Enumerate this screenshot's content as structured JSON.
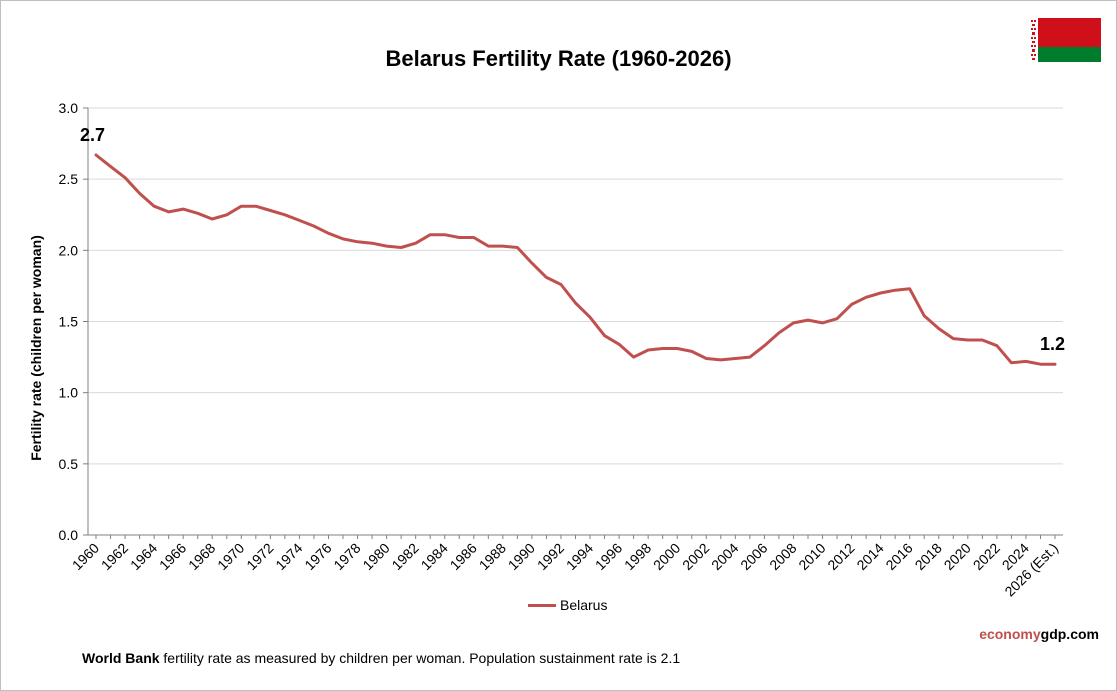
{
  "header": {
    "title": "Belarus Fertility Rate (1960-2026)"
  },
  "footer": {
    "brand_part1": "economy",
    "brand_part2": "gdp.com",
    "note_bold": "World Bank",
    "note_text": " fertility rate as measured by children per woman.  Population sustainment rate is 2.1"
  },
  "flag": {
    "icon": "belarus-flag-icon",
    "colors": {
      "red": "#cf101a",
      "green": "#007d2c",
      "white": "#ffffff"
    }
  },
  "chart_data": {
    "type": "line",
    "title": "Belarus Fertility Rate (1960-2026)",
    "xlabel": "",
    "ylabel": "Fertility rate (children per woman)",
    "ylim": [
      0,
      3.0
    ],
    "yticks": [
      0.0,
      0.5,
      1.0,
      1.5,
      2.0,
      2.5,
      3.0
    ],
    "ytick_labels": [
      "0.0",
      "0.5",
      "1.0",
      "1.5",
      "2.0",
      "2.5",
      "3.0"
    ],
    "grid": "horizontal",
    "legend_position": "bottom",
    "x": [
      "1960",
      "1961",
      "1962",
      "1963",
      "1964",
      "1965",
      "1966",
      "1967",
      "1968",
      "1969",
      "1970",
      "1971",
      "1972",
      "1973",
      "1974",
      "1975",
      "1976",
      "1977",
      "1978",
      "1979",
      "1980",
      "1981",
      "1982",
      "1983",
      "1984",
      "1985",
      "1986",
      "1987",
      "1988",
      "1989",
      "1990",
      "1991",
      "1992",
      "1993",
      "1994",
      "1995",
      "1996",
      "1997",
      "1998",
      "1999",
      "2000",
      "2001",
      "2002",
      "2003",
      "2004",
      "2005",
      "2006",
      "2007",
      "2008",
      "2009",
      "2010",
      "2011",
      "2012",
      "2013",
      "2014",
      "2015",
      "2016",
      "2017",
      "2018",
      "2019",
      "2020",
      "2021",
      "2022",
      "2023",
      "2024",
      "2025",
      "2026 (Est.)"
    ],
    "x_tick_labels_shown": [
      "1960",
      "1962",
      "1964",
      "1966",
      "1968",
      "1970",
      "1972",
      "1974",
      "1976",
      "1978",
      "1980",
      "1982",
      "1984",
      "1986",
      "1988",
      "1990",
      "1992",
      "1994",
      "1996",
      "1998",
      "2000",
      "2002",
      "2004",
      "2006",
      "2008",
      "2010",
      "2012",
      "2014",
      "2016",
      "2018",
      "2020",
      "2022",
      "2024",
      "2026 (Est.)"
    ],
    "series": [
      {
        "name": "Belarus",
        "color": "#c0504d",
        "values": [
          2.67,
          2.59,
          2.51,
          2.4,
          2.31,
          2.27,
          2.29,
          2.26,
          2.22,
          2.25,
          2.31,
          2.31,
          2.28,
          2.25,
          2.21,
          2.17,
          2.12,
          2.08,
          2.06,
          2.05,
          2.03,
          2.02,
          2.05,
          2.11,
          2.11,
          2.09,
          2.09,
          2.03,
          2.03,
          2.02,
          1.91,
          1.81,
          1.76,
          1.63,
          1.53,
          1.4,
          1.34,
          1.25,
          1.3,
          1.31,
          1.31,
          1.29,
          1.24,
          1.23,
          1.24,
          1.25,
          1.33,
          1.42,
          1.49,
          1.51,
          1.49,
          1.52,
          1.62,
          1.67,
          1.7,
          1.72,
          1.73,
          1.54,
          1.45,
          1.38,
          1.37,
          1.37,
          1.33,
          1.21,
          1.22,
          1.2,
          1.2
        ]
      }
    ],
    "annotations": [
      {
        "label": "2.7",
        "x": "1960",
        "y": 2.67
      },
      {
        "label": "1.2",
        "x": "2026 (Est.)",
        "y": 1.2
      }
    ]
  }
}
